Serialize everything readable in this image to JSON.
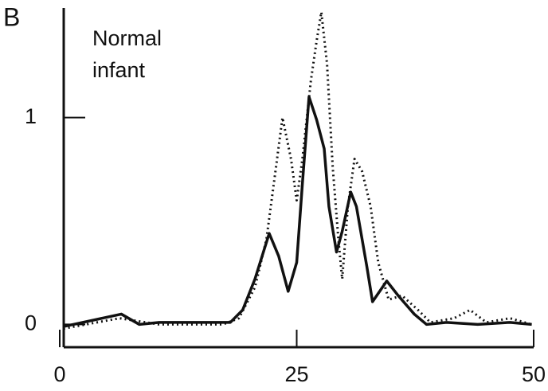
{
  "chart_data": {
    "type": "line",
    "title": "B",
    "annotation": [
      "Normal",
      "infant"
    ],
    "xlim": [
      0,
      50
    ],
    "xticks": [
      0,
      25,
      50
    ],
    "ylim": [
      -0.11,
      1.53
    ],
    "yticks": [
      0,
      1
    ],
    "series": [
      {
        "color": "#111111",
        "style": "solid",
        "x": [
          0.4,
          6.5,
          8.4,
          10.5,
          14.7,
          18,
          19.3,
          20.6,
          22.1,
          23.1,
          24.1,
          25,
          25.6,
          26.3,
          27.1,
          27.9,
          28.4,
          29.2,
          29.8,
          30.7,
          31.3,
          32.4,
          33,
          34.5,
          35.7,
          37.4,
          38.7,
          40.8,
          44.1,
          47.5,
          49.8
        ],
        "values": [
          -0.01,
          0.05,
          0,
          0.01,
          0.01,
          0.01,
          0.07,
          0.22,
          0.44,
          0.33,
          0.16,
          0.3,
          0.68,
          1.1,
          0.99,
          0.85,
          0.57,
          0.35,
          0.45,
          0.64,
          0.57,
          0.28,
          0.11,
          0.21,
          0.14,
          0.05,
          0,
          0.01,
          0,
          0.01,
          0
        ]
      },
      {
        "color": "#111111",
        "style": "dotted",
        "x": [
          0.4,
          6.3,
          10.5,
          17.2,
          18.9,
          20.6,
          21.8,
          22.7,
          23.5,
          24.4,
          25,
          25.6,
          26.5,
          27.1,
          27.6,
          28.2,
          28.8,
          29.4,
          29.8,
          30.4,
          31.1,
          31.9,
          32.8,
          33.6,
          34.7,
          36.1,
          37.8,
          39.1,
          41.6,
          43.3,
          45,
          47.5,
          49.8
        ],
        "values": [
          -0.02,
          0.03,
          0,
          0,
          0.03,
          0.18,
          0.41,
          0.72,
          1.0,
          0.8,
          0.6,
          0.8,
          1.18,
          1.37,
          1.51,
          1.26,
          0.76,
          0.41,
          0.22,
          0.57,
          0.8,
          0.74,
          0.57,
          0.3,
          0.12,
          0.14,
          0.07,
          0.01,
          0.03,
          0.07,
          0.01,
          0.03,
          0
        ]
      }
    ]
  }
}
